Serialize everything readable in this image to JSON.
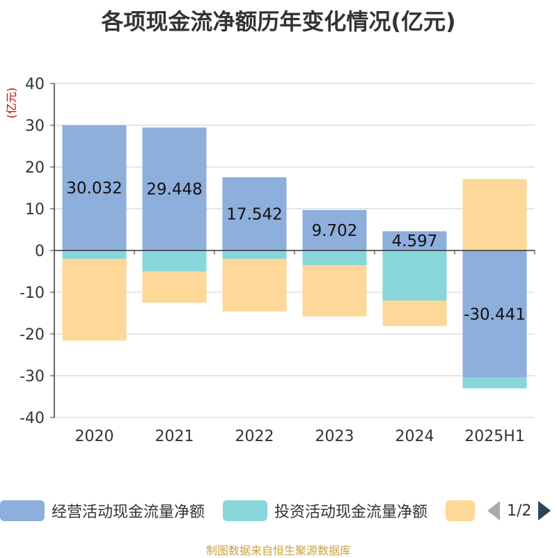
{
  "title": "各项现金流净额历年变化情况(亿元)",
  "source": "制图数据来自恒生聚源数据库",
  "legend": {
    "items": [
      {
        "label": "经营活动现金流量净额",
        "color": "#8eaedb"
      },
      {
        "label": "投资活动现金流量净额",
        "color": "#88d6d9"
      },
      {
        "label": "",
        "color": "#fed898"
      }
    ],
    "page": "1/2"
  },
  "chart_data": {
    "type": "bar",
    "stacked": true,
    "unit_label": "(亿元)",
    "categories": [
      "2020",
      "2021",
      "2022",
      "2023",
      "2024",
      "2025H1"
    ],
    "ylim": [
      -40,
      40
    ],
    "yticks": [
      40,
      30,
      20,
      10,
      0,
      -10,
      -20,
      -30,
      -40
    ],
    "grid": true,
    "legend_position": "bottom",
    "series": [
      {
        "name": "经营活动现金流量净额",
        "color": "#8eaedb",
        "values": [
          30.032,
          29.448,
          17.542,
          9.702,
          4.597,
          -30.441
        ],
        "labels": [
          "30.032",
          "29.448",
          "17.542",
          "9.702",
          "4.597",
          "-30.441"
        ]
      },
      {
        "name": "投资活动现金流量净额",
        "color": "#88d6d9",
        "values": [
          -2.0,
          -5.0,
          -2.0,
          -3.5,
          -12.0,
          -2.6
        ]
      },
      {
        "color": "#fed898",
        "values": [
          -19.6,
          -7.5,
          -12.6,
          -12.3,
          -6.1,
          17.1
        ]
      }
    ]
  }
}
